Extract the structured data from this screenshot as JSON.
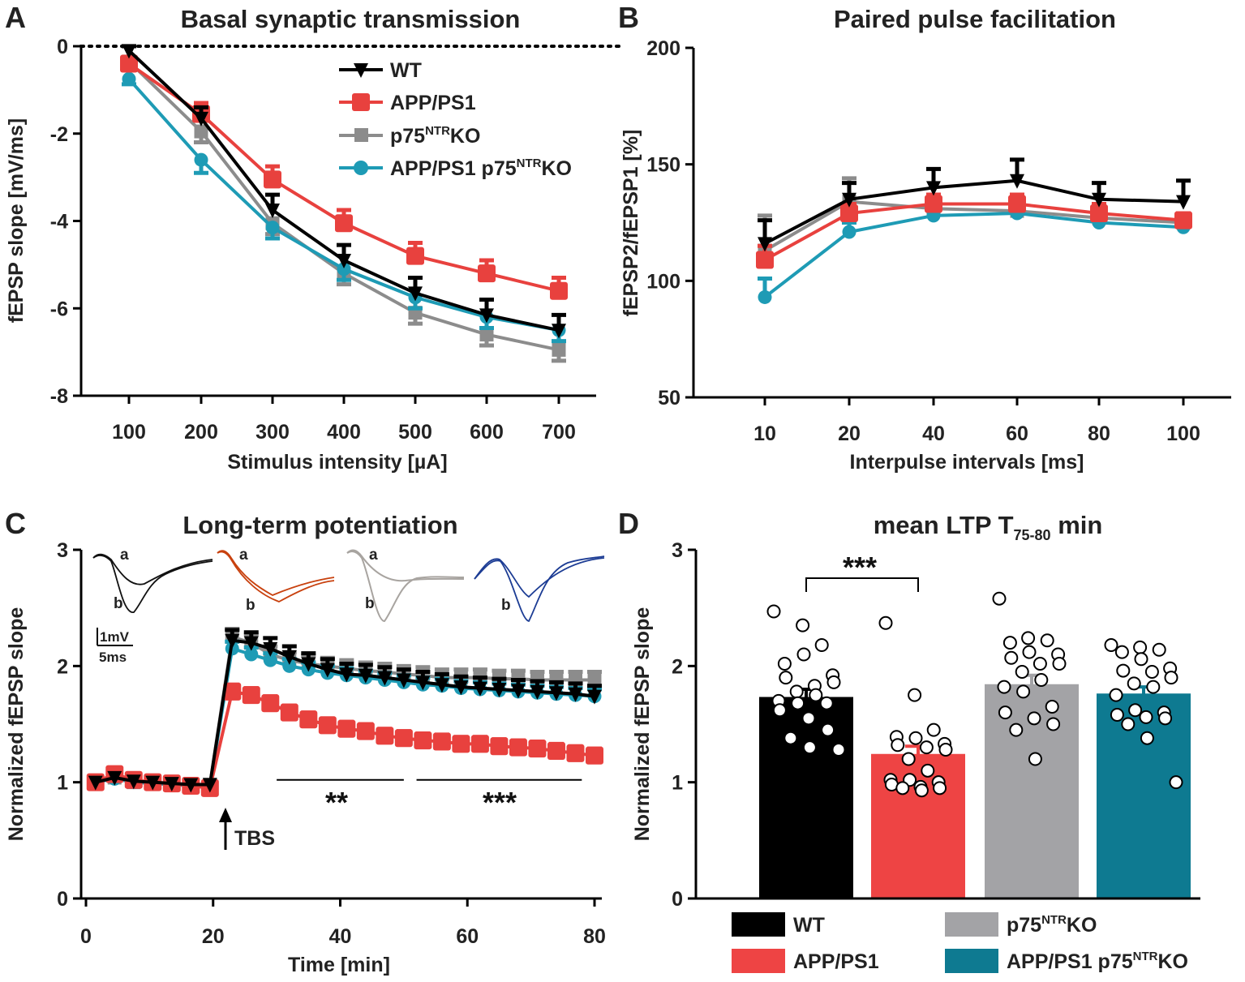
{
  "colors": {
    "wt": "#000000",
    "app": "#e8413e",
    "p75": "#8c8c8c",
    "dbl": "#1e9bb5",
    "bar_wt": "#000000",
    "bar_app": "#ee4444",
    "bar_p75": "#a3a3a6",
    "bar_dbl": "#0e7a91",
    "trace_app": "#c8410e",
    "trace_p75": "#a8a4a0",
    "trace_dbl": "#1c3c94"
  },
  "legend": {
    "wt": "WT",
    "app": "APP/PS1",
    "p75_main": "p75",
    "p75_sup": "NTR",
    "p75_suffix": "KO",
    "dbl_main": "APP/PS1 p75",
    "dbl_sup": "NTR",
    "dbl_suffix": "KO"
  },
  "chart_data": [
    {
      "panel": "A",
      "type": "line",
      "title": "Basal synaptic transmission",
      "xlabel": "Stimulus intensity [µA]",
      "ylabel": "fEPSP slope [mV/ms]",
      "categories": [
        "100",
        "200",
        "300",
        "400",
        "500",
        "600",
        "700"
      ],
      "ylim": [
        -8,
        0
      ],
      "yticks": [
        "0",
        "-2",
        "-4",
        "-6",
        "-8"
      ],
      "zero_line": "dotted",
      "series": [
        {
          "key": "p75",
          "name": "p75NTRKO",
          "marker": "square",
          "values": [
            -0.35,
            -1.95,
            -4.05,
            -5.2,
            -6.1,
            -6.6,
            -6.95
          ],
          "err": [
            0.12,
            0.25,
            0.25,
            0.25,
            0.25,
            0.25,
            0.25
          ]
        },
        {
          "key": "dbl",
          "name": "APP/PS1 p75NTRKO",
          "marker": "circle",
          "values": [
            -0.75,
            -2.6,
            -4.15,
            -5.1,
            -5.75,
            -6.2,
            -6.5
          ],
          "err": [
            0.12,
            0.3,
            0.25,
            0.25,
            0.25,
            0.25,
            0.25
          ]
        },
        {
          "key": "app",
          "name": "APP/PS1",
          "marker": "square-large",
          "values": [
            -0.4,
            -1.55,
            -3.05,
            -4.05,
            -4.8,
            -5.2,
            -5.6
          ],
          "err": [
            0.15,
            0.25,
            0.3,
            0.3,
            0.3,
            0.3,
            0.3
          ]
        },
        {
          "key": "wt",
          "name": "WT",
          "marker": "triangle-down",
          "values": [
            -0.1,
            -1.65,
            -3.75,
            -4.9,
            -5.65,
            -6.15,
            -6.5
          ],
          "err": [
            0.1,
            0.25,
            0.35,
            0.35,
            0.35,
            0.35,
            0.35
          ]
        }
      ]
    },
    {
      "panel": "B",
      "type": "line",
      "title": "Paired pulse facilitation",
      "xlabel": "Interpulse intervals [ms]",
      "ylabel": "fEPSP2/fEPSP1 [%]",
      "categories": [
        "10",
        "20",
        "40",
        "60",
        "80",
        "100"
      ],
      "ylim": [
        50,
        200
      ],
      "yticks": [
        "50",
        "100",
        "150",
        "200"
      ],
      "series": [
        {
          "key": "p75",
          "name": "p75NTRKO",
          "marker": "square",
          "values": [
            113,
            134,
            131,
            130,
            127,
            125
          ],
          "err": [
            15,
            10,
            3,
            3,
            3,
            3
          ]
        },
        {
          "key": "dbl",
          "name": "APP/PS1 p75NTRKO",
          "marker": "circle",
          "values": [
            93,
            121,
            128,
            129,
            125,
            123
          ],
          "err": [
            8,
            4,
            2,
            2,
            2,
            2
          ]
        },
        {
          "key": "app",
          "name": "APP/PS1",
          "marker": "square-large",
          "values": [
            109,
            129,
            133,
            133,
            129,
            126
          ],
          "err": [
            6,
            4,
            4,
            4,
            4,
            3
          ]
        },
        {
          "key": "wt",
          "name": "WT",
          "marker": "triangle-down",
          "values": [
            116,
            135,
            140,
            143,
            135,
            134
          ],
          "err": [
            10,
            7,
            8,
            9,
            7,
            9
          ]
        }
      ]
    },
    {
      "panel": "C",
      "type": "line",
      "title": "Long-term potentiation",
      "xlabel": "Time [min]",
      "ylabel": "Normalized fEPSP slope",
      "xlim": [
        0,
        82
      ],
      "xticks": [
        "0",
        "20",
        "40",
        "60",
        "80"
      ],
      "ylim": [
        0,
        3
      ],
      "yticks": [
        "0",
        "1",
        "2",
        "3"
      ],
      "tbs_label": "TBS",
      "tbs_time": 20,
      "sig_early": "**",
      "sig_late": "***",
      "sig_early_range": [
        30,
        50
      ],
      "sig_late_range": [
        52,
        78
      ],
      "x": [
        1.5,
        4.5,
        7.5,
        10.5,
        13.5,
        16.5,
        19.5,
        23,
        26,
        29,
        32,
        35,
        38,
        41,
        44,
        47,
        50,
        53,
        56,
        59,
        62,
        65,
        68,
        71,
        74,
        77,
        80
      ],
      "series": [
        {
          "key": "p75",
          "name": "p75NTRKO",
          "marker": "square",
          "err": 0.07,
          "values": [
            1.0,
            1.04,
            1.0,
            0.99,
            0.98,
            0.98,
            0.98,
            2.25,
            2.2,
            2.1,
            2.05,
            2.02,
            2.0,
            1.98,
            1.96,
            1.95,
            1.93,
            1.92,
            1.9,
            1.9,
            1.9,
            1.89,
            1.89,
            1.88,
            1.88,
            1.88,
            1.88
          ]
        },
        {
          "key": "dbl",
          "name": "APP/PS1 p75NTRKO",
          "marker": "circle",
          "err": 0.06,
          "values": [
            1.0,
            1.03,
            1.0,
            0.99,
            0.98,
            0.97,
            0.97,
            2.15,
            2.1,
            2.05,
            2.0,
            1.97,
            1.94,
            1.92,
            1.9,
            1.88,
            1.86,
            1.84,
            1.83,
            1.81,
            1.8,
            1.79,
            1.78,
            1.77,
            1.76,
            1.75,
            1.74
          ]
        },
        {
          "key": "app",
          "name": "APP/PS1",
          "marker": "square-large",
          "err": 0.06,
          "values": [
            1.0,
            1.07,
            1.02,
            1.0,
            0.99,
            0.97,
            0.95,
            1.78,
            1.75,
            1.68,
            1.6,
            1.54,
            1.49,
            1.46,
            1.44,
            1.4,
            1.38,
            1.36,
            1.35,
            1.33,
            1.33,
            1.31,
            1.3,
            1.29,
            1.27,
            1.25,
            1.23
          ]
        },
        {
          "key": "wt",
          "name": "WT",
          "marker": "triangle-down",
          "err": 0.09,
          "values": [
            1.0,
            1.04,
            1.01,
            1.0,
            0.99,
            0.98,
            0.98,
            2.22,
            2.2,
            2.15,
            2.08,
            2.02,
            1.97,
            1.93,
            1.92,
            1.9,
            1.88,
            1.86,
            1.84,
            1.82,
            1.81,
            1.8,
            1.79,
            1.78,
            1.77,
            1.76,
            1.74
          ]
        }
      ],
      "traces": [
        {
          "key": "wt",
          "label_a": "a",
          "label_b": "b"
        },
        {
          "key": "app",
          "label_a": "a",
          "label_b": "b"
        },
        {
          "key": "p75",
          "label_a": "a",
          "label_b": "b"
        },
        {
          "key": "dbl",
          "label_a": "",
          "label_b": ""
        }
      ],
      "scalebar": {
        "v": "1mV",
        "h": "5ms"
      }
    },
    {
      "panel": "D",
      "type": "bar",
      "title": "mean LTP T",
      "title_sub": "75-80",
      "title_end": " min",
      "ylabel": "Normalized fEPSP slope",
      "ylim": [
        0,
        3
      ],
      "yticks": [
        "0",
        "1",
        "2",
        "3"
      ],
      "significance": {
        "between": [
          0,
          1
        ],
        "label": "***"
      },
      "bars": [
        {
          "key": "wt",
          "name": "WT",
          "mean": 1.73,
          "sem": 0.07,
          "points": [
            2.47,
            2.35,
            2.18,
            2.02,
            2.1,
            1.92,
            1.9,
            1.83,
            1.86,
            1.78,
            1.75,
            1.7,
            1.68,
            1.68,
            1.62,
            1.55,
            1.45,
            1.38,
            1.3,
            1.28
          ]
        },
        {
          "key": "app",
          "name": "APP/PS1",
          "mean": 1.24,
          "sem": 0.07,
          "points": [
            2.37,
            1.75,
            1.45,
            1.39,
            1.38,
            1.33,
            1.32,
            1.3,
            1.28,
            1.2,
            1.1,
            1.02,
            1.02,
            1.0,
            0.98,
            0.96,
            0.95,
            0.95,
            0.93
          ]
        },
        {
          "key": "p75",
          "name": "p75NTRKO",
          "mean": 1.84,
          "sem": 0.08,
          "points": [
            2.58,
            2.24,
            2.22,
            2.2,
            2.12,
            2.1,
            2.07,
            2.02,
            2.02,
            1.95,
            1.88,
            1.82,
            1.78,
            1.65,
            1.6,
            1.55,
            1.5,
            1.45,
            1.2
          ]
        },
        {
          "key": "dbl",
          "name": "APP/PS1 p75NTRKO",
          "mean": 1.76,
          "sem": 0.06,
          "points": [
            2.18,
            2.16,
            2.14,
            2.12,
            2.06,
            1.98,
            1.96,
            1.95,
            1.9,
            1.85,
            1.82,
            1.75,
            1.62,
            1.6,
            1.58,
            1.56,
            1.55,
            1.5,
            1.38,
            1.0
          ]
        }
      ]
    }
  ],
  "panel_letters": {
    "a": "A",
    "b": "B",
    "c": "C",
    "d": "D"
  }
}
